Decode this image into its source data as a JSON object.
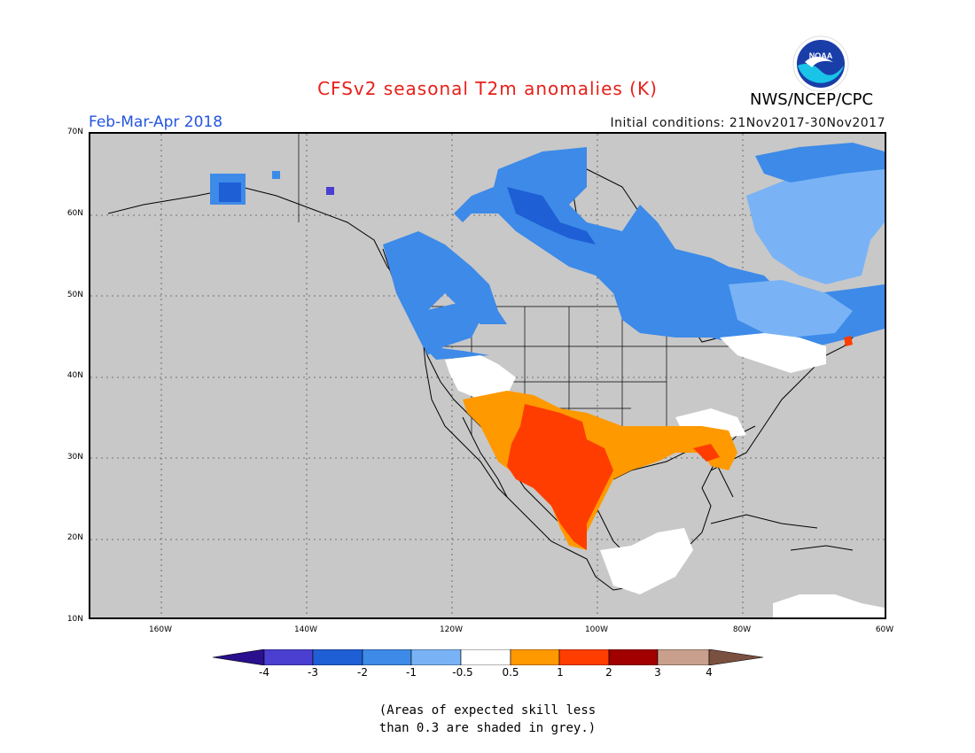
{
  "header": {
    "title": "CFSv2 seasonal T2m anomalies (K)",
    "agency": "NWS/NCEP/CPC",
    "logo_text": "NOAA",
    "period": "Feb-Mar-Apr 2018",
    "initial_conditions": "Initial conditions: 21Nov2017-30Nov2017"
  },
  "map": {
    "lat_labels": [
      "70N",
      "60N",
      "50N",
      "40N",
      "30N",
      "20N",
      "10N"
    ],
    "lon_labels": [
      "160W",
      "140W",
      "120W",
      "100W",
      "80W",
      "60W"
    ],
    "background_color": "#c8c8c8"
  },
  "colorbar": {
    "labels": [
      "-4",
      "-3",
      "-2",
      "-1",
      "-0.5",
      "0.5",
      "1",
      "2",
      "3",
      "4"
    ],
    "colors": [
      "#2a0f8f",
      "#4a3fd0",
      "#1f5fd6",
      "#3d8ae8",
      "#79b3f5",
      "#ffffff",
      "#ff9900",
      "#ff3d00",
      "#a00000",
      "#c9a08d",
      "#7a5040"
    ]
  },
  "note": {
    "line1": "(Areas of expected skill less",
    "line2": "than 0.3 are shaded in grey.)"
  }
}
